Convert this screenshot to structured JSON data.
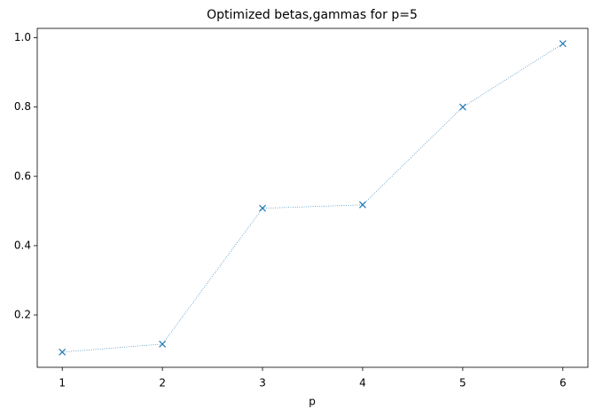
{
  "chart_data": {
    "type": "line",
    "title": "Optimized betas,gammas for p=5",
    "x_label": "p",
    "x": [
      1,
      2,
      3,
      4,
      5,
      6
    ],
    "values": [
      0.093,
      0.116,
      0.508,
      0.518,
      0.8,
      0.983
    ],
    "color": "#1f77b4",
    "marker": "x",
    "linestyle": "dotted",
    "xlim": [
      0.75,
      6.25
    ],
    "xticks": [
      1,
      2,
      3,
      4,
      5,
      6
    ],
    "ylim": [
      0.049,
      1.027
    ],
    "yticks": [
      0.2,
      0.4,
      0.6,
      0.8,
      {
        "value": 1,
        "label": "1.0"
      }
    ],
    "grid": false
  }
}
